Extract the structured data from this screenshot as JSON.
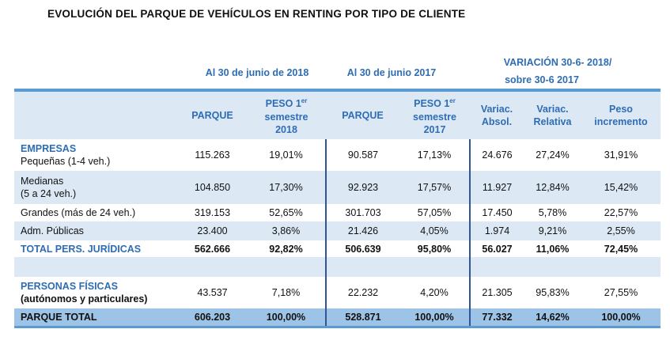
{
  "title": "EVOLUCIÓN DEL PARQUE DE VEHÍCULOS EN RENTING POR TIPO DE CLIENTE",
  "groups": {
    "g2018": "Al 30 de junio de 2018",
    "g2017": "Al 30 de junio 2017",
    "var_line1": "VARIACIÓN 30-6- 2018/",
    "var_line2": "sobre  30-6 2017"
  },
  "headers": {
    "parque": "PARQUE",
    "peso": "PESO 1",
    "peso_sup": "er",
    "semestre": "semestre",
    "y2018": "2018",
    "y2017": "2017",
    "var_abs_1": "Variac.",
    "var_abs_2": "Absol.",
    "var_rel_1": "Variac.",
    "var_rel_2": "Relativa",
    "peso_inc_1": "Peso",
    "peso_inc_2": "incremento"
  },
  "rows": [
    {
      "section": "EMPRESAS",
      "label": "Pequeñas (1-4 veh.)",
      "values": [
        "115.263",
        "19,01%",
        "90.587",
        "17,13%",
        "24.676",
        "27,24%",
        "31,91%"
      ]
    },
    {
      "label": "Medianas",
      "label2": "(5 a 24 veh.)",
      "values": [
        "104.850",
        "17,30%",
        "92.923",
        "17,57%",
        "11.927",
        "12,84%",
        "15,42%"
      ]
    },
    {
      "label": "Grandes (más de 24 veh.)",
      "values": [
        "319.153",
        "52,65%",
        "301.703",
        "57,05%",
        "17.450",
        "5,78%",
        "22,57%"
      ]
    },
    {
      "label": "Adm. Públicas",
      "values": [
        "23.400",
        "3,86%",
        "21.426",
        "4,05%",
        "1.974",
        "9,21%",
        "2,55%"
      ]
    },
    {
      "label": "TOTAL PERS. JURÍDICAS",
      "values": [
        "562.666",
        "92,82%",
        "506.639",
        "95,80%",
        "56.027",
        "11,06%",
        "72,45%"
      ]
    },
    {
      "section": "PERSONAS FÍSICAS",
      "label": "(autónomos y particulares)",
      "values": [
        "43.537",
        "7,18%",
        "22.232",
        "4,20%",
        "21.305",
        "95,83%",
        "27,55%"
      ]
    },
    {
      "label": "PARQUE TOTAL",
      "values": [
        "606.203",
        "100,00%",
        "528.871",
        "100,00%",
        "77.332",
        "14,62%",
        "100,00%"
      ]
    }
  ]
}
